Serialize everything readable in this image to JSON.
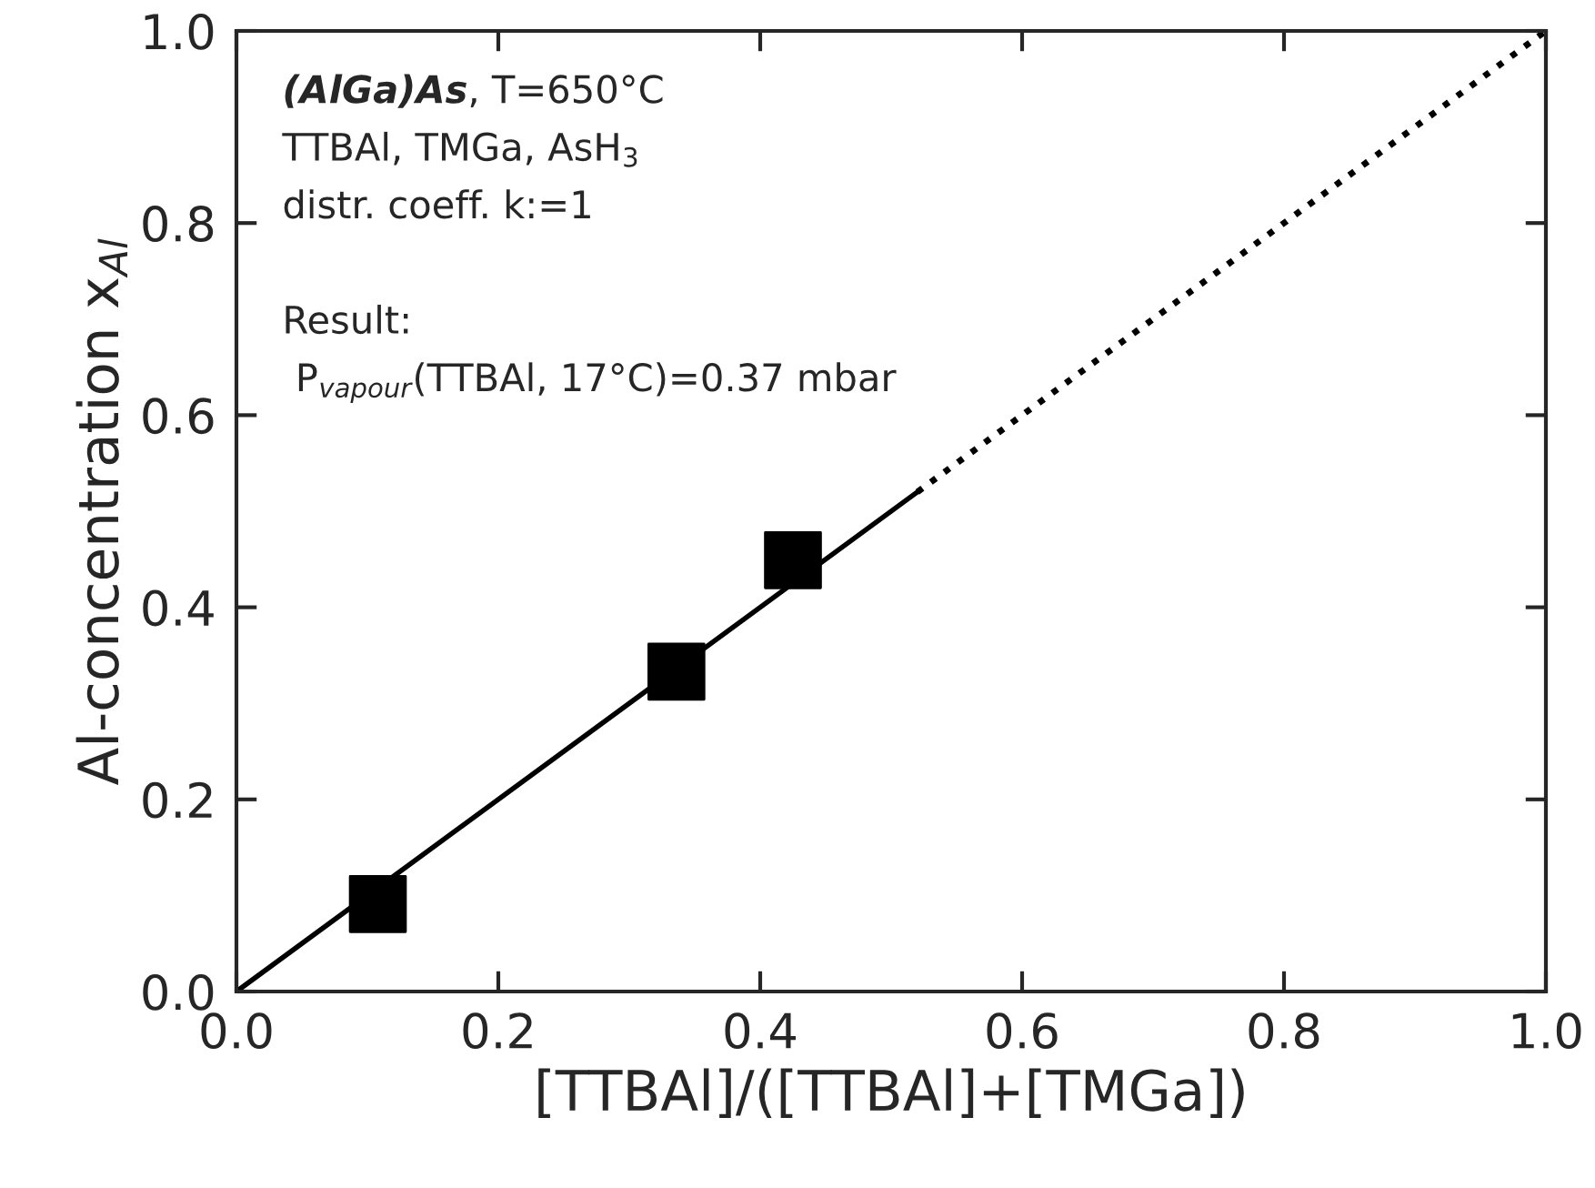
{
  "chart_data": {
    "type": "scatter",
    "xlabel": "[TTBAl]/([TTBAl]+[TMGa])",
    "ylabel": "Al-concentration x$_{Al}$",
    "xlim": [
      0,
      1
    ],
    "ylim": [
      0,
      1
    ],
    "xticks": [
      {
        "value": 0,
        "label": "0.0"
      },
      0.2,
      0.4,
      0.6,
      0.8,
      {
        "value": 1,
        "label": "1.0"
      }
    ],
    "yticks": [
      {
        "value": 0,
        "label": "0.0"
      },
      0.2,
      0.4,
      0.6,
      0.8,
      {
        "value": 1,
        "label": "1.0"
      }
    ],
    "grid": false,
    "legend": false,
    "series": [
      {
        "marker": "square",
        "color": "#000000",
        "x": [
          0.108,
          0.336,
          0.425
        ],
        "values": [
          0.091,
          0.333,
          0.449
        ]
      },
      {
        "type": "line",
        "marker": "none",
        "line_style": "solid",
        "color": "#000000",
        "x": [
          0,
          0.52
        ],
        "values": [
          0,
          0.52
        ]
      },
      {
        "type": "line",
        "marker": "none",
        "line_style": "dotted",
        "color": "#000000",
        "x": [
          0.52,
          1.0
        ],
        "values": [
          0.52,
          1.0
        ]
      }
    ],
    "annotations": [
      "(AlGa)As",
      ", T=650°C",
      "TTBAl, TMGa, AsH$_{3}$",
      "distr. coeff. k:=1",
      "Result:",
      "P$_{vapour}$(TTBAl, 17°C)=0.37 mbar"
    ]
  }
}
